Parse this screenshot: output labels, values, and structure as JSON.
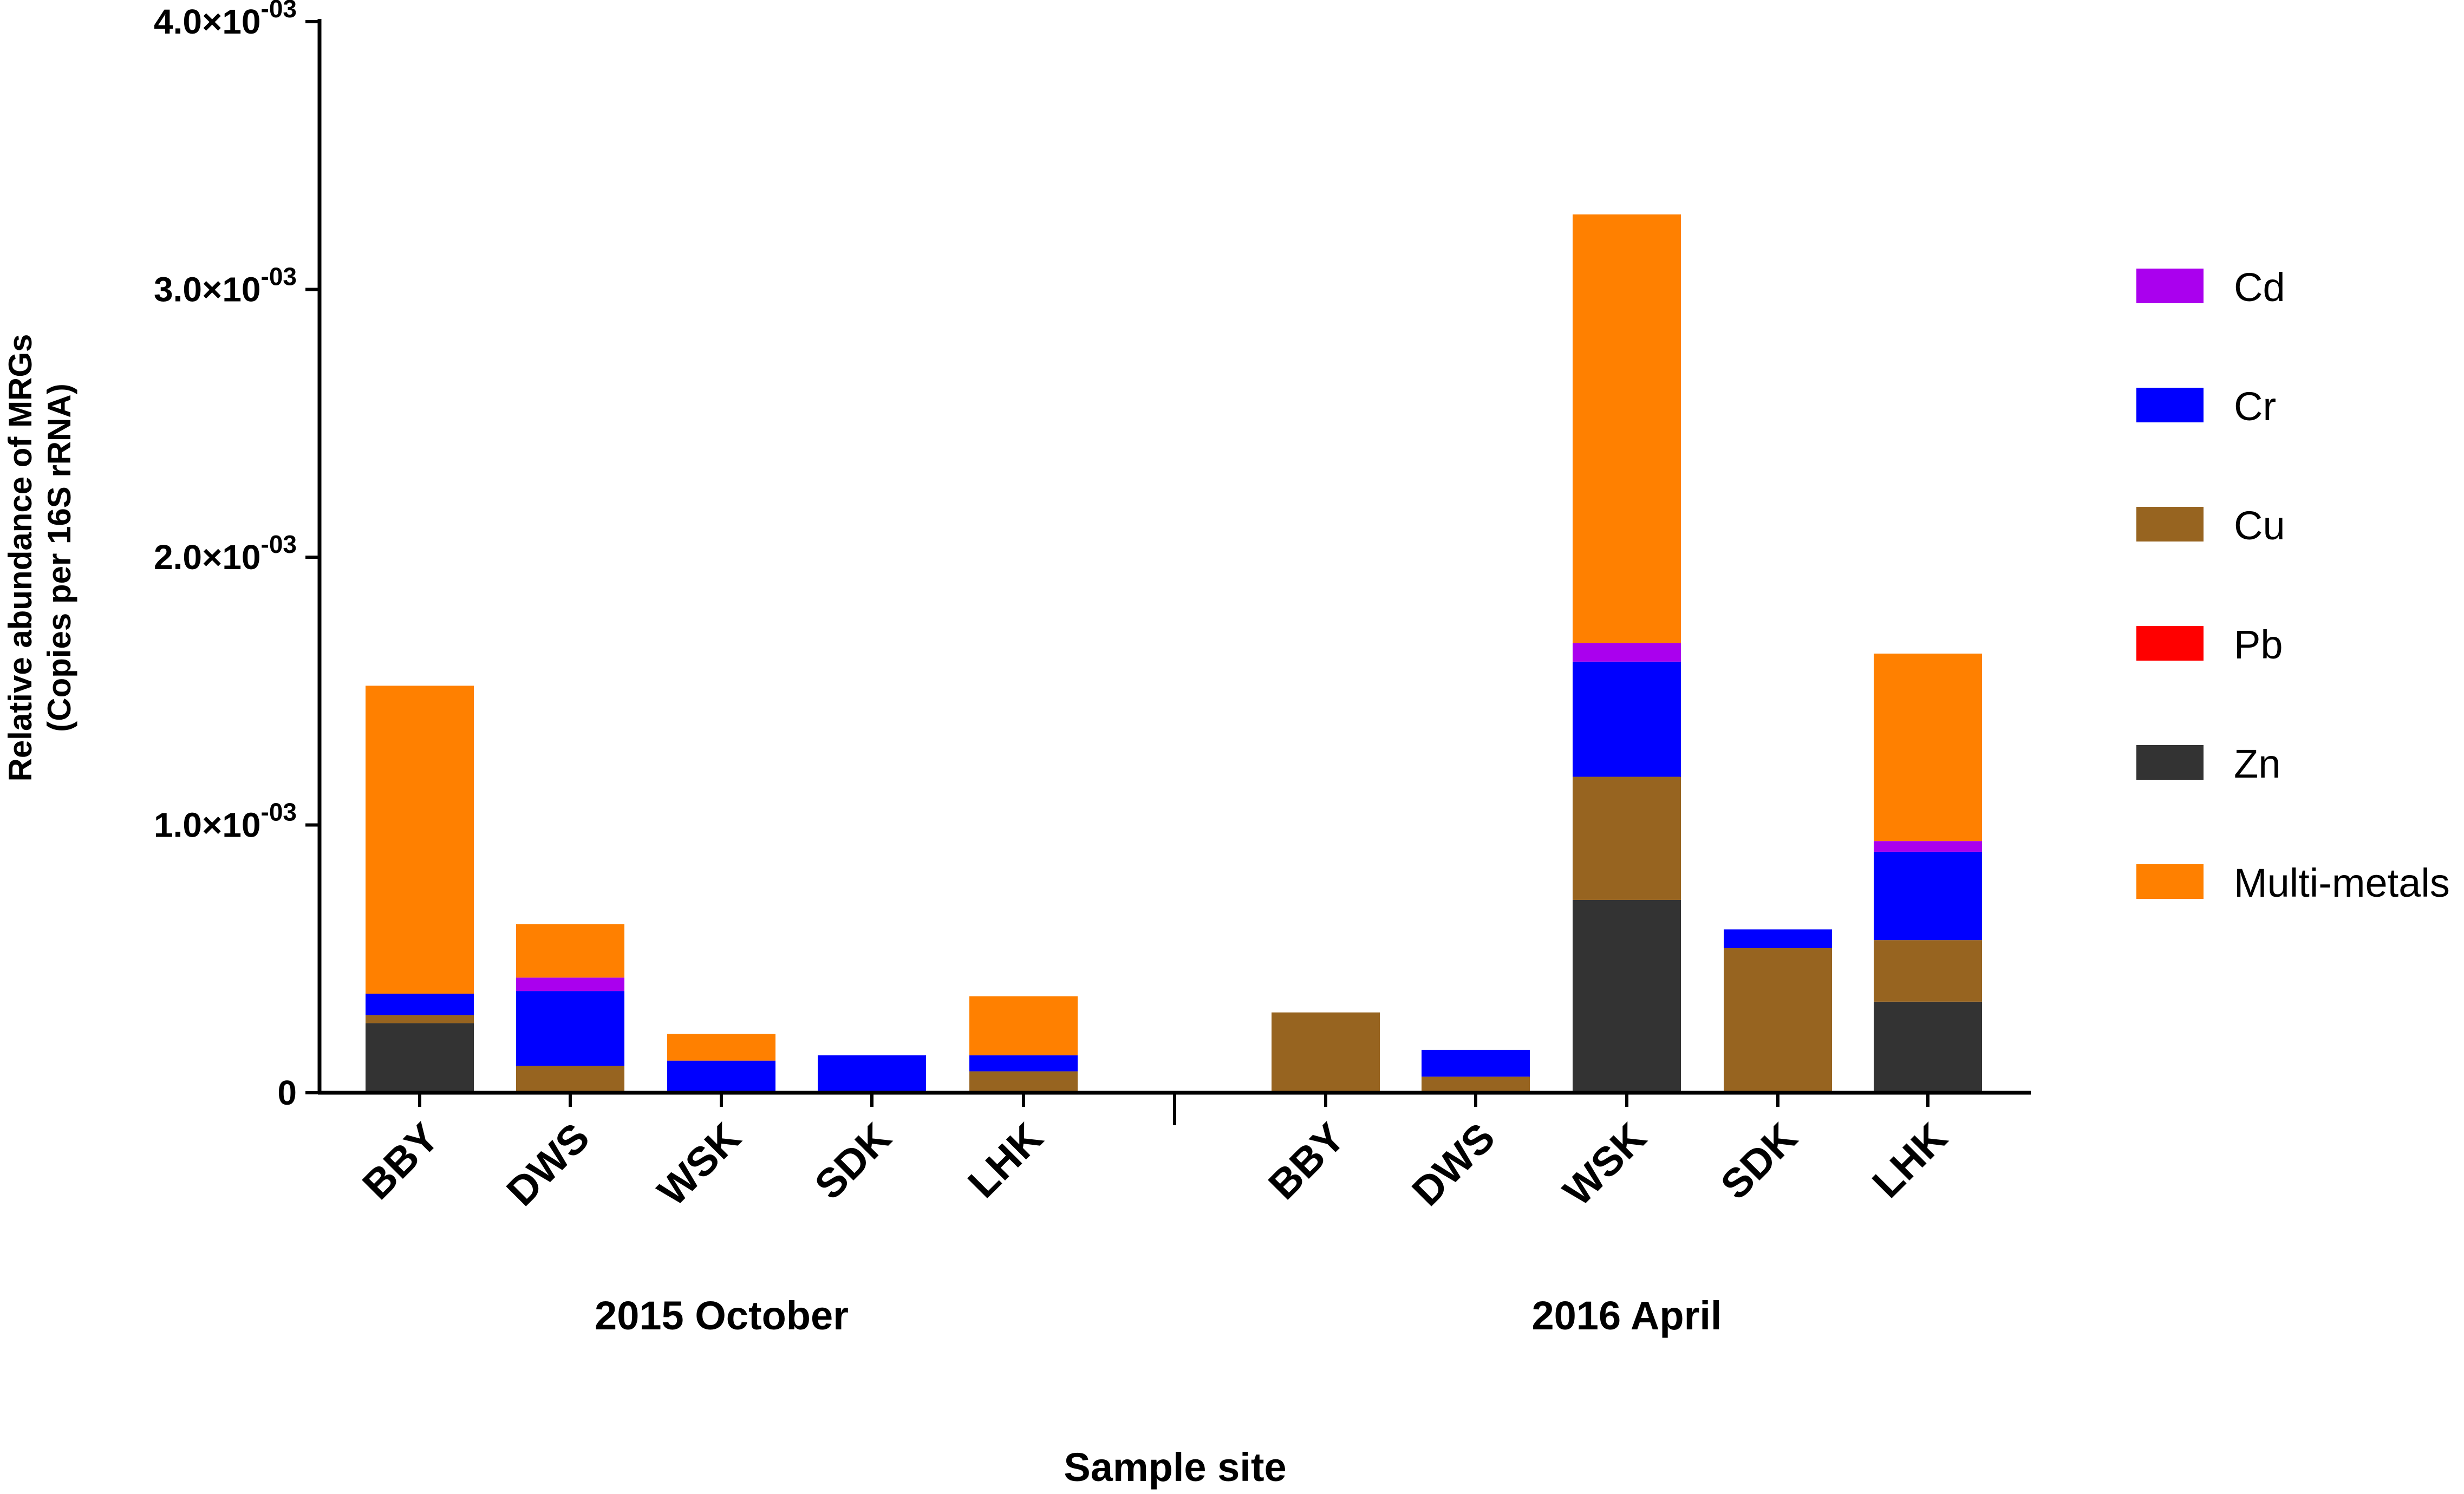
{
  "chart_data": {
    "type": "bar",
    "stacked": true,
    "title": "",
    "ylabel": [
      "Relative abundance of MRGs",
      "(Copies per 16S rRNA)"
    ],
    "xlabel": "Sample site",
    "ylim": [
      0,
      0.004
    ],
    "yticks": [
      {
        "value": 0,
        "label": "0"
      },
      {
        "value": 0.001,
        "label": "1.0×10",
        "exp": "-03"
      },
      {
        "value": 0.002,
        "label": "2.0×10",
        "exp": "-03"
      },
      {
        "value": 0.003,
        "label": "3.0×10",
        "exp": "-03"
      },
      {
        "value": 0.004,
        "label": "4.0×10",
        "exp": "-03"
      }
    ],
    "groups": [
      {
        "label": "2015 October",
        "categories": [
          "BBY",
          "DWS",
          "WSK",
          "SDK",
          "LHK"
        ]
      },
      {
        "label": "2016 April",
        "categories": [
          "BBY",
          "DWS",
          "WSK",
          "SDK",
          "LHK"
        ]
      }
    ],
    "legend_position": "right",
    "series": [
      {
        "name": "Zn",
        "color": "#333333",
        "values": [
          0.00026,
          0,
          0,
          0,
          0,
          0,
          0,
          0.00072,
          0,
          0.00034
        ]
      },
      {
        "name": "Pb",
        "color": "#ff0000",
        "values": [
          0,
          0,
          0,
          0,
          0,
          0,
          0,
          0,
          0,
          0
        ]
      },
      {
        "name": "Cu",
        "color": "#976420",
        "values": [
          3e-05,
          0.0001,
          0,
          0,
          8e-05,
          0.0003,
          6e-05,
          0.00046,
          0.00054,
          0.00023
        ]
      },
      {
        "name": "Cr",
        "color": "#0000ff",
        "values": [
          8e-05,
          0.00028,
          0.00012,
          0.00014,
          6e-05,
          0,
          0.0001,
          0.00043,
          7e-05,
          0.00033
        ]
      },
      {
        "name": "Cd",
        "color": "#aa00ee",
        "values": [
          0,
          5e-05,
          0,
          0,
          0,
          0,
          0,
          7e-05,
          0,
          4e-05
        ]
      },
      {
        "name": "Multi-metals",
        "color": "#ff8000",
        "values": [
          0.00115,
          0.0002,
          0.0001,
          0,
          0.00022,
          0,
          0,
          0.0016,
          0,
          0.0007
        ]
      }
    ],
    "legend_order": [
      "Cd",
      "Cr",
      "Cu",
      "Pb",
      "Zn",
      "Multi-metals"
    ]
  }
}
